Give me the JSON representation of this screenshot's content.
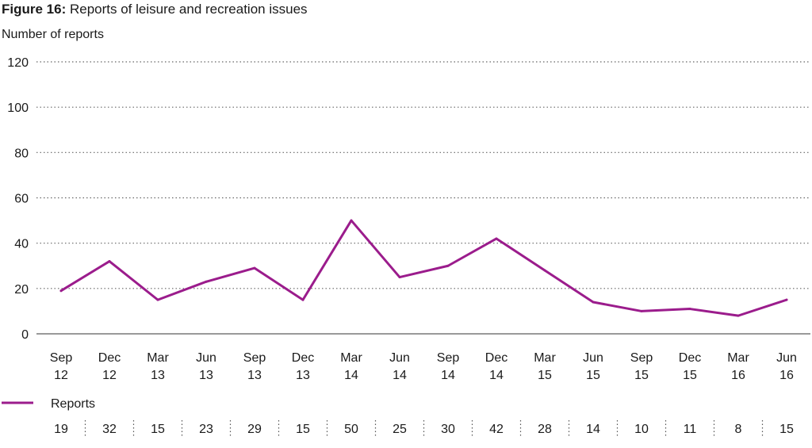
{
  "title_prefix": "Figure 16:",
  "title": "Reports of leisure and recreation issues",
  "chart_data": {
    "type": "line",
    "ylabel": "Number of reports",
    "ylim": [
      0,
      120
    ],
    "yticks": [
      0,
      20,
      40,
      60,
      80,
      100,
      120
    ],
    "grid": "horizontal dotted",
    "categories": [
      [
        "Sep",
        "12"
      ],
      [
        "Dec",
        "12"
      ],
      [
        "Mar",
        "13"
      ],
      [
        "Jun",
        "13"
      ],
      [
        "Sep",
        "13"
      ],
      [
        "Dec",
        "13"
      ],
      [
        "Mar",
        "14"
      ],
      [
        "Jun",
        "14"
      ],
      [
        "Sep",
        "14"
      ],
      [
        "Dec",
        "14"
      ],
      [
        "Mar",
        "15"
      ],
      [
        "Jun",
        "15"
      ],
      [
        "Sep",
        "15"
      ],
      [
        "Dec",
        "15"
      ],
      [
        "Mar",
        "16"
      ],
      [
        "Jun",
        "16"
      ]
    ],
    "series": [
      {
        "name": "Reports",
        "color": "#9b1c8c",
        "values": [
          19,
          32,
          15,
          23,
          29,
          15,
          50,
          25,
          30,
          42,
          28,
          14,
          10,
          11,
          8,
          15
        ]
      }
    ],
    "legend_position": "bottom-left",
    "data_table": "below chart"
  }
}
